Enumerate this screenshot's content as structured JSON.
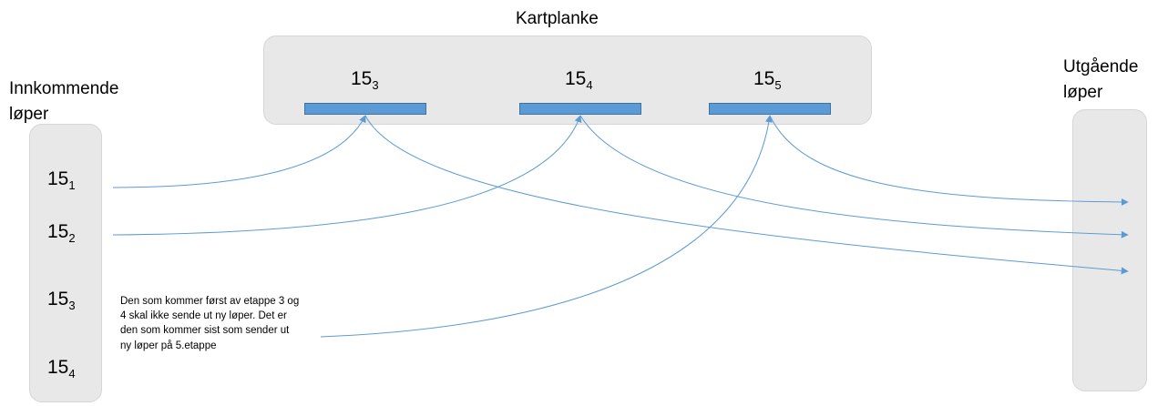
{
  "kartplanke": {
    "title": "Kartplanke",
    "slots": [
      {
        "base": "15",
        "sub": "3"
      },
      {
        "base": "15",
        "sub": "4"
      },
      {
        "base": "15",
        "sub": "5"
      }
    ]
  },
  "incoming": {
    "title": "Innkommende løper",
    "runners": [
      {
        "base": "15",
        "sub": "1"
      },
      {
        "base": "15",
        "sub": "2"
      },
      {
        "base": "15",
        "sub": "3"
      },
      {
        "base": "15",
        "sub": "4"
      }
    ]
  },
  "outgoing": {
    "title": "Utgående løper"
  },
  "note": "Den som kommer først av etappe 3 og 4 skal ikke sende ut ny løper. Det er den som kommer sist som sender ut ny løper på 5.etappe",
  "colors": {
    "panel": "#e8e8e8",
    "slot": "#5b9bd5",
    "arrow": "#5b9bd5"
  }
}
